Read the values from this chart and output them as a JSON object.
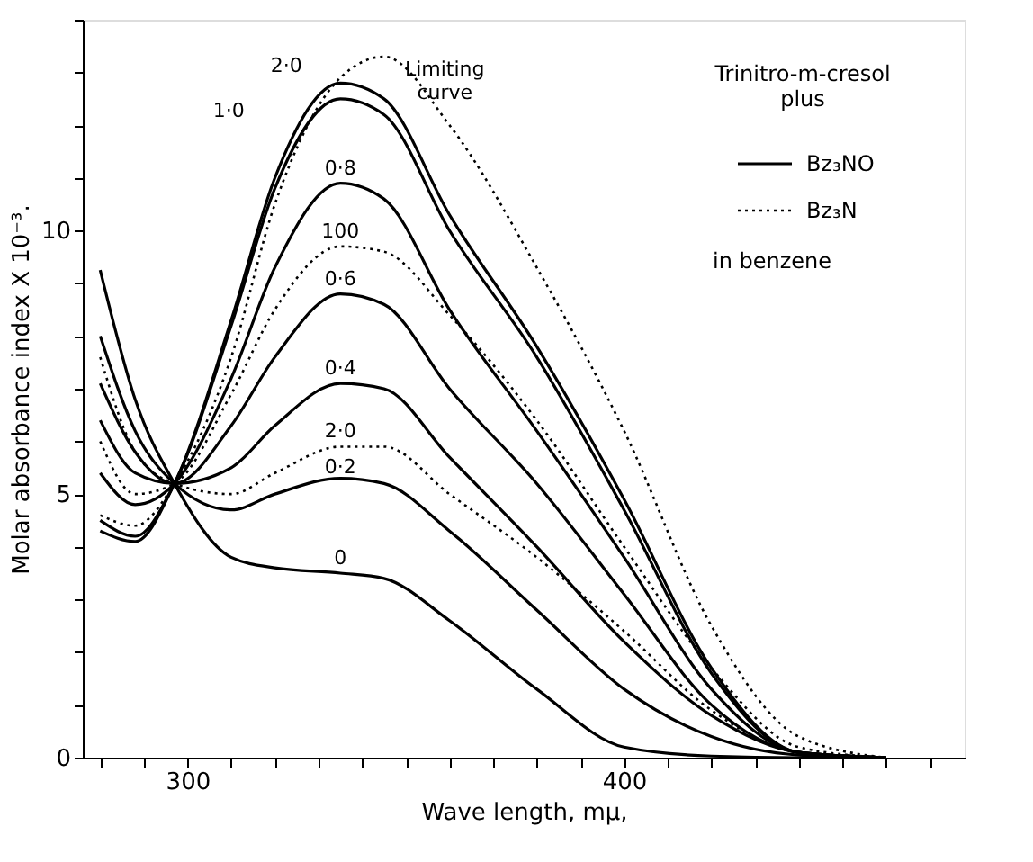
{
  "chart_data": {
    "type": "line",
    "xlabel": "Wave length, mμ,",
    "ylabel": "Molar absorbance index X 10⁻³.",
    "x": [
      280,
      288,
      297,
      310,
      320,
      335,
      345,
      360,
      380,
      400,
      420,
      440,
      460
    ],
    "series": [
      {
        "name": "0",
        "color": "#000000",
        "line_style": "solid",
        "values": [
          9.25,
          6.8,
          5.2,
          3.8,
          3.6,
          3.5,
          3.4,
          2.6,
          1.3,
          0.2,
          0.03,
          0,
          0
        ]
      },
      {
        "name": "0·2",
        "color": "#000000",
        "line_style": "solid",
        "values": [
          8.0,
          6.2,
          5.2,
          4.7,
          5.0,
          5.3,
          5.2,
          4.3,
          2.8,
          1.3,
          0.4,
          0.05,
          0
        ]
      },
      {
        "name": "0·4",
        "color": "#000000",
        "line_style": "solid",
        "values": [
          7.1,
          5.8,
          5.2,
          5.5,
          6.3,
          7.1,
          7.0,
          5.7,
          4.0,
          2.2,
          0.8,
          0.1,
          0
        ]
      },
      {
        "name": "0·6",
        "color": "#000000",
        "line_style": "solid",
        "values": [
          6.4,
          5.4,
          5.2,
          6.3,
          7.6,
          8.8,
          8.6,
          7.0,
          5.2,
          3.1,
          1.0,
          0.1,
          0
        ]
      },
      {
        "name": "0·8",
        "color": "#000000",
        "line_style": "solid",
        "values": [
          5.4,
          4.8,
          5.2,
          7.2,
          9.3,
          10.9,
          10.6,
          8.5,
          6.2,
          3.8,
          1.3,
          0.1,
          0
        ]
      },
      {
        "name": "1·0",
        "color": "#000000",
        "line_style": "solid",
        "values": [
          4.5,
          4.2,
          5.2,
          8.2,
          10.8,
          12.5,
          12.2,
          10.0,
          7.6,
          4.7,
          1.6,
          0.1,
          0
        ]
      },
      {
        "name": "2·0",
        "color": "#000000",
        "line_style": "solid",
        "values": [
          4.3,
          4.1,
          5.2,
          8.3,
          11.0,
          12.8,
          12.5,
          10.3,
          7.8,
          4.9,
          1.7,
          0.1,
          0
        ]
      },
      {
        "name": "100",
        "color": "#000000",
        "line_style": "dotted",
        "values": [
          6.0,
          5.0,
          5.2,
          6.9,
          8.5,
          9.7,
          9.6,
          8.4,
          6.4,
          4.0,
          1.7,
          0.2,
          0
        ]
      },
      {
        "name": "2·0",
        "color": "#000000",
        "line_style": "dotted",
        "values": [
          7.6,
          5.8,
          5.2,
          5.0,
          5.4,
          5.9,
          5.9,
          5.0,
          3.8,
          2.4,
          0.9,
          0.1,
          0
        ]
      },
      {
        "name": "Limiting curve",
        "color": "#000000",
        "line_style": "dotted",
        "values": [
          4.6,
          4.4,
          5.2,
          7.6,
          10.5,
          12.9,
          13.3,
          12.0,
          9.3,
          6.2,
          2.5,
          0.4,
          0
        ]
      }
    ],
    "annotations": [
      "Trinitro-m-cresol plus",
      "Bz₃NO",
      "Bz₃N",
      "in benzene"
    ],
    "xlim": [
      276,
      478
    ],
    "ylim": [
      0,
      14
    ],
    "xticks": [
      {
        "value": 280,
        "label": null
      },
      {
        "value": 290,
        "label": null
      },
      300,
      {
        "value": 310,
        "label": null
      },
      {
        "value": 320,
        "label": null
      },
      {
        "value": 330,
        "label": null
      },
      {
        "value": 340,
        "label": null
      },
      {
        "value": 350,
        "label": null
      },
      {
        "value": 360,
        "label": null
      },
      {
        "value": 370,
        "label": null
      },
      {
        "value": 380,
        "label": null
      },
      {
        "value": 390,
        "label": null
      },
      400,
      {
        "value": 410,
        "label": null
      },
      {
        "value": 420,
        "label": null
      },
      {
        "value": 430,
        "label": null
      },
      {
        "value": 440,
        "label": null
      },
      {
        "value": 450,
        "label": null
      },
      {
        "value": 460,
        "label": null
      },
      {
        "value": 470,
        "label": null
      }
    ],
    "yticks": [
      0,
      {
        "value": 1,
        "label": null
      },
      {
        "value": 2,
        "label": null
      },
      {
        "value": 3,
        "label": null
      },
      {
        "value": 4,
        "label": null
      },
      5,
      {
        "value": 6,
        "label": null
      },
      {
        "value": 7,
        "label": null
      },
      {
        "value": 8,
        "label": null
      },
      {
        "value": 9,
        "label": null
      },
      10,
      {
        "value": 11,
        "label": null
      },
      {
        "value": 12,
        "label": null
      },
      {
        "value": 13,
        "label": null
      },
      {
        "value": 14,
        "label": null
      }
    ],
    "grid": false
  }
}
